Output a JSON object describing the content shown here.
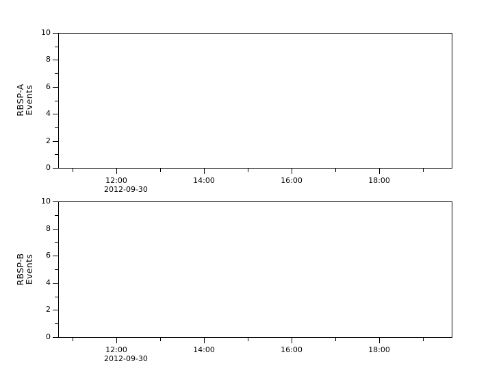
{
  "colors": {
    "background": "#ffffff",
    "axis": "#000000",
    "text": "#000000"
  },
  "chart_data": [
    {
      "type": "line",
      "panel": "top",
      "title": "",
      "ylabel_lines": [
        "RBSP-A",
        "Events"
      ],
      "ylabel": "RBSP-A Events",
      "xlabel": "",
      "x_tick_labels": [
        "12:00",
        "14:00",
        "16:00",
        "18:00"
      ],
      "x_date_label": "2012-09-30",
      "y_ticks": [
        0,
        2,
        4,
        6,
        8,
        10
      ],
      "ylim": [
        0,
        10
      ],
      "xlim": [
        "10:40",
        "19:40"
      ],
      "grid": false,
      "legend": null,
      "series": []
    },
    {
      "type": "line",
      "panel": "bottom",
      "title": "",
      "ylabel_lines": [
        "RBSP-B",
        "Events"
      ],
      "ylabel": "RBSP-B Events",
      "xlabel": "",
      "x_tick_labels": [
        "12:00",
        "14:00",
        "16:00",
        "18:00"
      ],
      "x_date_label": "2012-09-30",
      "y_ticks": [
        0,
        2,
        4,
        6,
        8,
        10
      ],
      "ylim": [
        0,
        10
      ],
      "xlim": [
        "10:40",
        "19:40"
      ],
      "grid": false,
      "legend": null,
      "series": []
    }
  ]
}
